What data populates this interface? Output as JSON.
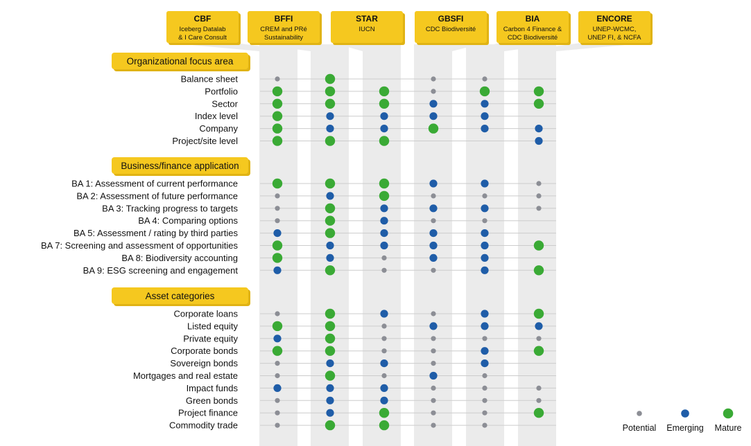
{
  "colors": {
    "yellow": "#F5C81F",
    "yellow_dark": "#E0B314",
    "column_band": "#EBEBEB",
    "row_line": "#CCCCCC",
    "potential": "#8C8E95",
    "emerging": "#1F5DA8",
    "mature": "#3AAA35"
  },
  "tools": [
    {
      "id": "cbf",
      "name": "CBF",
      "lines": [
        "Iceberg Datalab",
        "& I Care Consult"
      ]
    },
    {
      "id": "bffi",
      "name": "BFFI",
      "lines": [
        "CREM and PRé",
        "Sustainability"
      ]
    },
    {
      "id": "star",
      "name": "STAR",
      "lines": [
        "IUCN"
      ]
    },
    {
      "id": "gbsfi",
      "name": "GBSFI",
      "lines": [
        "CDC Biodiversité"
      ]
    },
    {
      "id": "bia",
      "name": "BIA",
      "lines": [
        "Carbon 4 Finance &",
        "CDC Biodiversité"
      ]
    },
    {
      "id": "encore",
      "name": "ENCORE",
      "lines": [
        "UNEP-WCMC,",
        "UNEP FI, & NCFA"
      ]
    }
  ],
  "sections": [
    {
      "id": "organizational",
      "label": "Organizational focus area",
      "rows": [
        {
          "label": "Balance sheet",
          "levels": [
            "P",
            "M",
            "",
            "P",
            "P",
            ""
          ]
        },
        {
          "label": "Portfolio",
          "levels": [
            "M",
            "M",
            "M",
            "P",
            "M",
            "M"
          ]
        },
        {
          "label": "Sector",
          "levels": [
            "M",
            "M",
            "M",
            "E",
            "E",
            "M"
          ]
        },
        {
          "label": "Index level",
          "levels": [
            "M",
            "E",
            "E",
            "E",
            "E",
            ""
          ]
        },
        {
          "label": "Company",
          "levels": [
            "M",
            "E",
            "E",
            "M",
            "E",
            "E"
          ]
        },
        {
          "label": "Project/site level",
          "levels": [
            "M",
            "M",
            "M",
            "",
            "",
            "E"
          ]
        }
      ]
    },
    {
      "id": "business",
      "label": "Business/finance application",
      "rows": [
        {
          "label": "BA 1: Assessment of current performance",
          "levels": [
            "M",
            "M",
            "M",
            "E",
            "E",
            "P"
          ]
        },
        {
          "label": "BA 2: Assessment of future performance",
          "levels": [
            "P",
            "E",
            "M",
            "P",
            "P",
            "P"
          ]
        },
        {
          "label": "BA 3: Tracking progress to targets",
          "levels": [
            "P",
            "M",
            "E",
            "E",
            "E",
            "P"
          ]
        },
        {
          "label": "BA 4: Comparing options",
          "levels": [
            "P",
            "M",
            "E",
            "P",
            "P",
            ""
          ]
        },
        {
          "label": "BA 5: Assessment / rating by third parties",
          "levels": [
            "E",
            "M",
            "E",
            "E",
            "E",
            ""
          ]
        },
        {
          "label": "BA 7: Screening and assessment of opportunities",
          "levels": [
            "M",
            "E",
            "E",
            "E",
            "E",
            "M"
          ]
        },
        {
          "label": "BA 8: Biodiversity accounting",
          "levels": [
            "M",
            "E",
            "P",
            "E",
            "E",
            ""
          ]
        },
        {
          "label": "BA 9: ESG screening and engagement",
          "levels": [
            "E",
            "M",
            "P",
            "P",
            "E",
            "M"
          ]
        }
      ]
    },
    {
      "id": "assets",
      "label": "Asset categories",
      "rows": [
        {
          "label": "Corporate loans",
          "levels": [
            "P",
            "M",
            "E",
            "P",
            "E",
            "M"
          ]
        },
        {
          "label": "Listed equity",
          "levels": [
            "M",
            "M",
            "P",
            "E",
            "E",
            "E"
          ]
        },
        {
          "label": "Private equity",
          "levels": [
            "E",
            "M",
            "P",
            "P",
            "P",
            "P"
          ]
        },
        {
          "label": "Corporate bonds",
          "levels": [
            "M",
            "M",
            "P",
            "P",
            "E",
            "M"
          ]
        },
        {
          "label": "Sovereign bonds",
          "levels": [
            "P",
            "E",
            "E",
            "P",
            "E",
            ""
          ]
        },
        {
          "label": "Mortgages and real estate",
          "levels": [
            "P",
            "M",
            "P",
            "E",
            "P",
            ""
          ]
        },
        {
          "label": "Impact funds",
          "levels": [
            "E",
            "E",
            "E",
            "P",
            "P",
            "P"
          ]
        },
        {
          "label": "Green bonds",
          "levels": [
            "P",
            "E",
            "E",
            "P",
            "P",
            "P"
          ]
        },
        {
          "label": "Project finance",
          "levels": [
            "P",
            "E",
            "M",
            "P",
            "P",
            "M"
          ]
        },
        {
          "label": "Commodity trade",
          "levels": [
            "P",
            "M",
            "M",
            "P",
            "P",
            ""
          ]
        }
      ]
    }
  ],
  "legend": [
    {
      "key": "P",
      "label": "Potential"
    },
    {
      "key": "E",
      "label": "Emerging"
    },
    {
      "key": "M",
      "label": "Mature"
    }
  ]
}
